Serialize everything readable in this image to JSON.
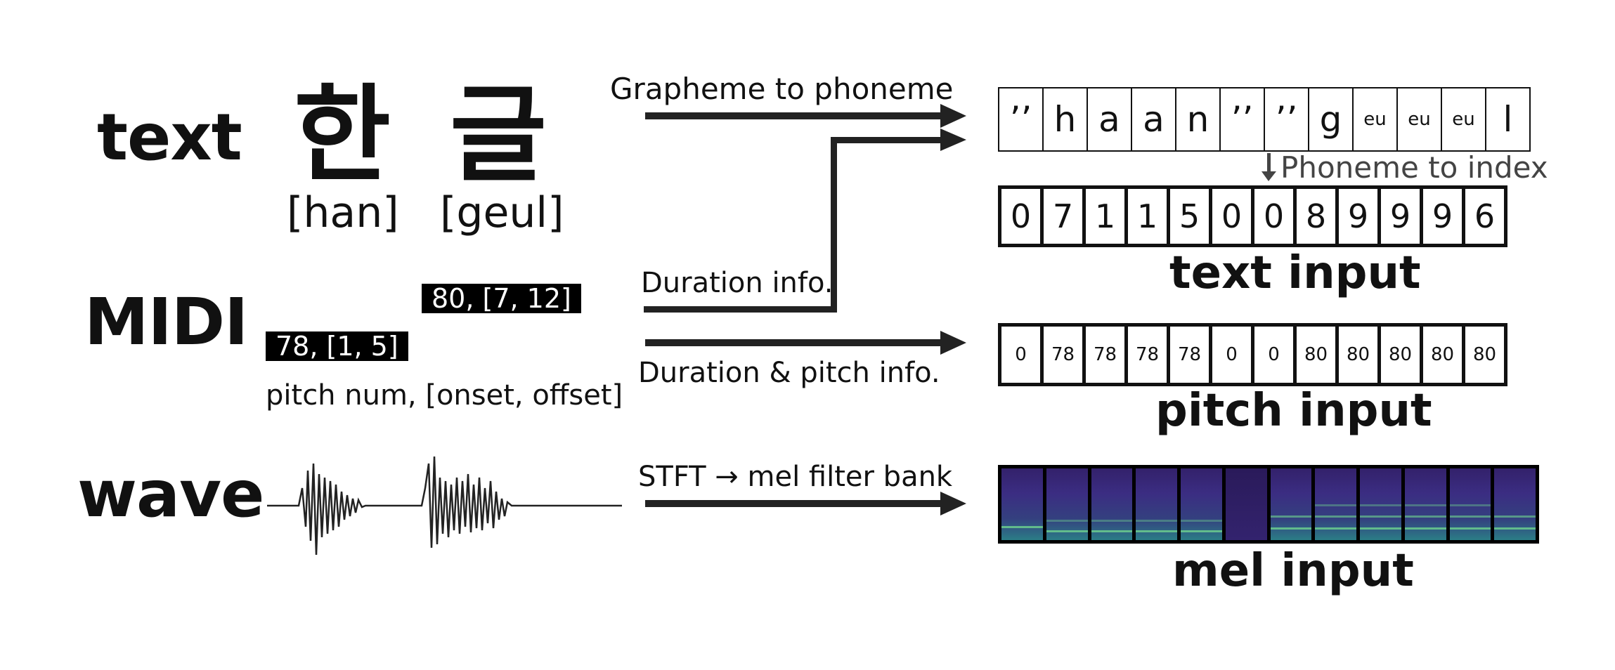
{
  "rows": {
    "text": "text",
    "midi": "MIDI",
    "wave": "wave"
  },
  "hangul": {
    "char1": "한",
    "char2": "글",
    "roman1": "[han]",
    "roman2": "[geul]"
  },
  "midi_notes": {
    "note1": "78, [1, 5]",
    "note2": "80, [7, 12]",
    "legend": "pitch num, [onset, offset]"
  },
  "edges": {
    "g2p": "Grapheme to phoneme",
    "duration": "Duration info.",
    "duration_pitch": "Duration & pitch info.",
    "stft": "STFT → mel filter bank",
    "phoneme_to_index": "Phoneme to index"
  },
  "phonemes": [
    "’’",
    "h",
    "a",
    "a",
    "n",
    "’’",
    "’’",
    "g",
    "eu",
    "eu",
    "eu",
    "l"
  ],
  "indices": [
    "0",
    "7",
    "1",
    "1",
    "5",
    "0",
    "0",
    "8",
    "9",
    "9",
    "9",
    "6"
  ],
  "pitches": [
    "0",
    "78",
    "78",
    "78",
    "78",
    "0",
    "0",
    "80",
    "80",
    "80",
    "80",
    "80"
  ],
  "captions": {
    "text_input": "text input",
    "pitch_input": "pitch input",
    "mel_input": "mel input"
  },
  "colors": {
    "arrow": "#222222",
    "mel_bg": "#33216b",
    "mel_harmonic": "#6fd38f"
  }
}
